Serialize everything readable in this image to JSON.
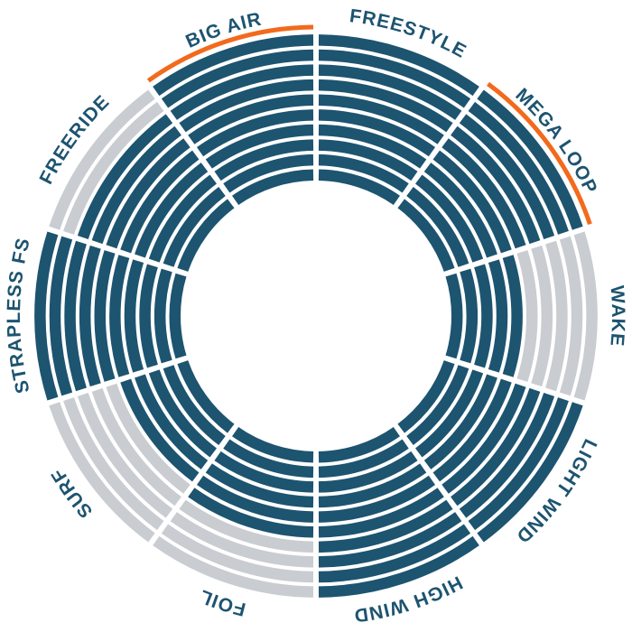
{
  "chart_data": {
    "type": "radial-rating",
    "rlim": [
      0,
      10
    ],
    "color": "#1d5470",
    "empty_color": "#c9ccd1",
    "highlight_color": "#f26a1c",
    "label_color": "#1d5470",
    "categories": [
      {
        "label": "FREESTYLE",
        "value": 10,
        "highlight": false
      },
      {
        "label": "MEGA LOOP",
        "value": 10,
        "highlight": true
      },
      {
        "label": "WAKE",
        "value": 5,
        "highlight": false
      },
      {
        "label": "LIGHT WIND",
        "value": 10,
        "highlight": false
      },
      {
        "label": "HIGH WIND",
        "value": 10,
        "highlight": false
      },
      {
        "label": "FOIL",
        "value": 6,
        "highlight": false
      },
      {
        "label": "SURF",
        "value": 5,
        "highlight": false
      },
      {
        "label": "STRAPLESS FS",
        "value": 10,
        "highlight": false
      },
      {
        "label": "FREERIDE",
        "value": 8,
        "highlight": false
      },
      {
        "label": "BIG AIR",
        "value": 10,
        "highlight": true
      }
    ]
  }
}
